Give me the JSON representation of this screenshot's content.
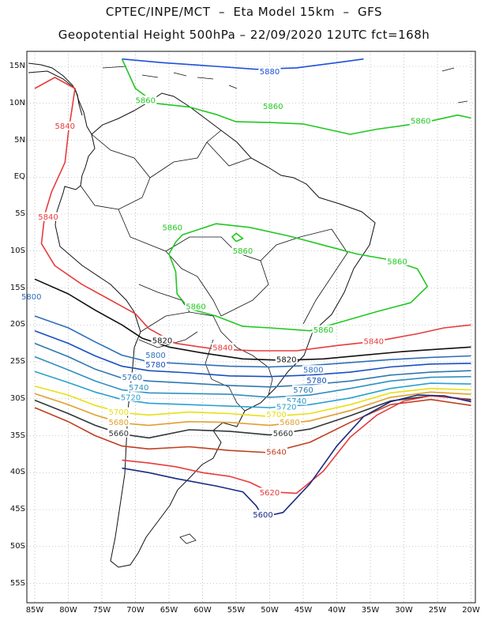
{
  "header": {
    "line1": "CPTEC/INPE/MCT  –  Eta Model 15km  –  GFS",
    "line2": "Geopotential Height 500hPa – 22/09/2020 12UTC fct=168h"
  },
  "axes": {
    "lat_labels": [
      "15N",
      "10N",
      "5N",
      "EQ",
      "5S",
      "10S",
      "15S",
      "20S",
      "25S",
      "30S",
      "35S",
      "40S",
      "45S",
      "50S",
      "55S"
    ],
    "lon_labels": [
      "85W",
      "80W",
      "75W",
      "70W",
      "65W",
      "60W",
      "55W",
      "50W",
      "45W",
      "40W",
      "35W",
      "30W",
      "25W",
      "20W"
    ]
  },
  "contour_colors": {
    "5880": "#1e50d8",
    "5860": "#20c820",
    "5840": "#e83c3c",
    "5820": "#101010",
    "5800": "#2f6fb8",
    "5780": "#1850c0",
    "5760": "#2f78b0",
    "5740": "#3090c0",
    "5720": "#2aa0d0",
    "5700": "#e8e010",
    "5680": "#e0a030",
    "5660": "#303838",
    "5640": "#c04020",
    "5620": "#e83c3c",
    "5600": "#1a2a80"
  },
  "contour_labels": [
    {
      "text": "5880",
      "lon": -50,
      "lat": 14.2
    },
    {
      "text": "5860",
      "lon": -68.5,
      "lat": 10.3
    },
    {
      "text": "5860",
      "lon": -49.5,
      "lat": 9.5
    },
    {
      "text": "5860",
      "lon": -27.5,
      "lat": 7.5
    },
    {
      "text": "5840",
      "lon": -80.5,
      "lat": 6.8
    },
    {
      "text": "5840",
      "lon": -83,
      "lat": -5.5
    },
    {
      "text": "5860",
      "lon": -64.5,
      "lat": -6.9
    },
    {
      "text": "5860",
      "lon": -54,
      "lat": -10.1
    },
    {
      "text": "5860",
      "lon": -31,
      "lat": -11.5
    },
    {
      "text": "5860",
      "lon": -61,
      "lat": -17.6
    },
    {
      "text": "5860",
      "lon": -42,
      "lat": -20.8
    },
    {
      "text": "5800",
      "lon": -85.5,
      "lat": -16.3
    },
    {
      "text": "5820",
      "lon": -66,
      "lat": -22.2
    },
    {
      "text": "5840",
      "lon": -57,
      "lat": -23.2
    },
    {
      "text": "5840",
      "lon": -34.5,
      "lat": -22.3
    },
    {
      "text": "5820",
      "lon": -47.5,
      "lat": -24.8
    },
    {
      "text": "5800",
      "lon": -67,
      "lat": -24.2
    },
    {
      "text": "5780",
      "lon": -67,
      "lat": -25.5
    },
    {
      "text": "5800",
      "lon": -43.5,
      "lat": -26.2
    },
    {
      "text": "5760",
      "lon": -70.5,
      "lat": -27.2
    },
    {
      "text": "5780",
      "lon": -43,
      "lat": -27.6
    },
    {
      "text": "5740",
      "lon": -69.5,
      "lat": -28.6
    },
    {
      "text": "5760",
      "lon": -45,
      "lat": -28.9
    },
    {
      "text": "5720",
      "lon": -70.7,
      "lat": -29.9
    },
    {
      "text": "5740",
      "lon": -46,
      "lat": -30.4
    },
    {
      "text": "5700",
      "lon": -72.5,
      "lat": -31.9
    },
    {
      "text": "5720",
      "lon": -47.5,
      "lat": -31.2
    },
    {
      "text": "5700",
      "lon": -49,
      "lat": -32.2
    },
    {
      "text": "5680",
      "lon": -72.5,
      "lat": -33.3
    },
    {
      "text": "5680",
      "lon": -47,
      "lat": -33.3
    },
    {
      "text": "5660",
      "lon": -72.5,
      "lat": -34.8
    },
    {
      "text": "5660",
      "lon": -48,
      "lat": -34.8
    },
    {
      "text": "5640",
      "lon": -49,
      "lat": -37.3
    },
    {
      "text": "5620",
      "lon": -50,
      "lat": -42.8
    },
    {
      "text": "5600",
      "lon": -51,
      "lat": -45.8
    }
  ]
}
